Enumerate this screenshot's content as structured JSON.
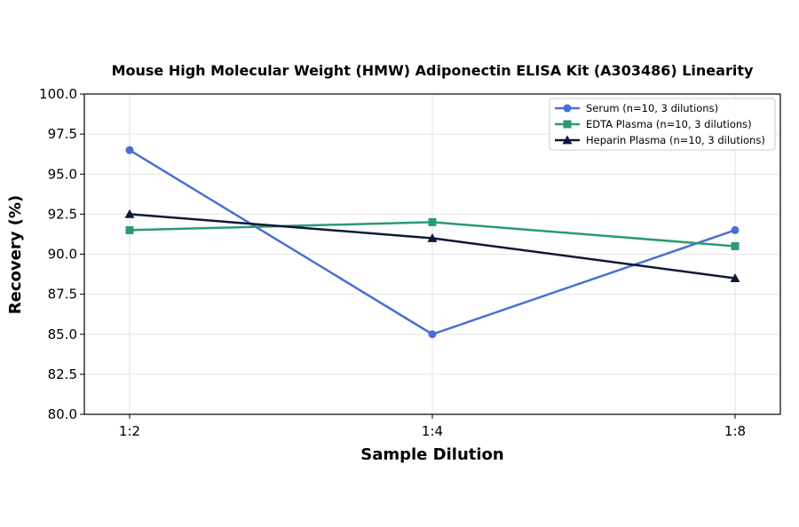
{
  "chart_data": {
    "type": "line",
    "title": "Mouse High Molecular Weight (HMW) Adiponectin ELISA Kit (A303486) Linearity",
    "xlabel": "Sample Dilution",
    "ylabel": "Recovery (%)",
    "categories": [
      "1:2",
      "1:4",
      "1:8"
    ],
    "ylim": [
      80.0,
      100.0
    ],
    "yticks": [
      "80.0",
      "82.5",
      "85.0",
      "87.5",
      "90.0",
      "92.5",
      "95.0",
      "97.5",
      "100.0"
    ],
    "grid": true,
    "legend_position": "top-right",
    "series": [
      {
        "name": "Serum (n=10, 3 dilutions)",
        "values": [
          96.5,
          85.0,
          91.5
        ],
        "color": "#4a6fd4",
        "marker": "circle"
      },
      {
        "name": "EDTA Plasma (n=10, 3 dilutions)",
        "values": [
          91.5,
          92.0,
          90.5
        ],
        "color": "#2a9a72",
        "marker": "square"
      },
      {
        "name": "Heparin Plasma (n=10, 3 dilutions)",
        "values": [
          92.5,
          91.0,
          88.5
        ],
        "color": "#0f1838",
        "marker": "triangle"
      }
    ]
  }
}
